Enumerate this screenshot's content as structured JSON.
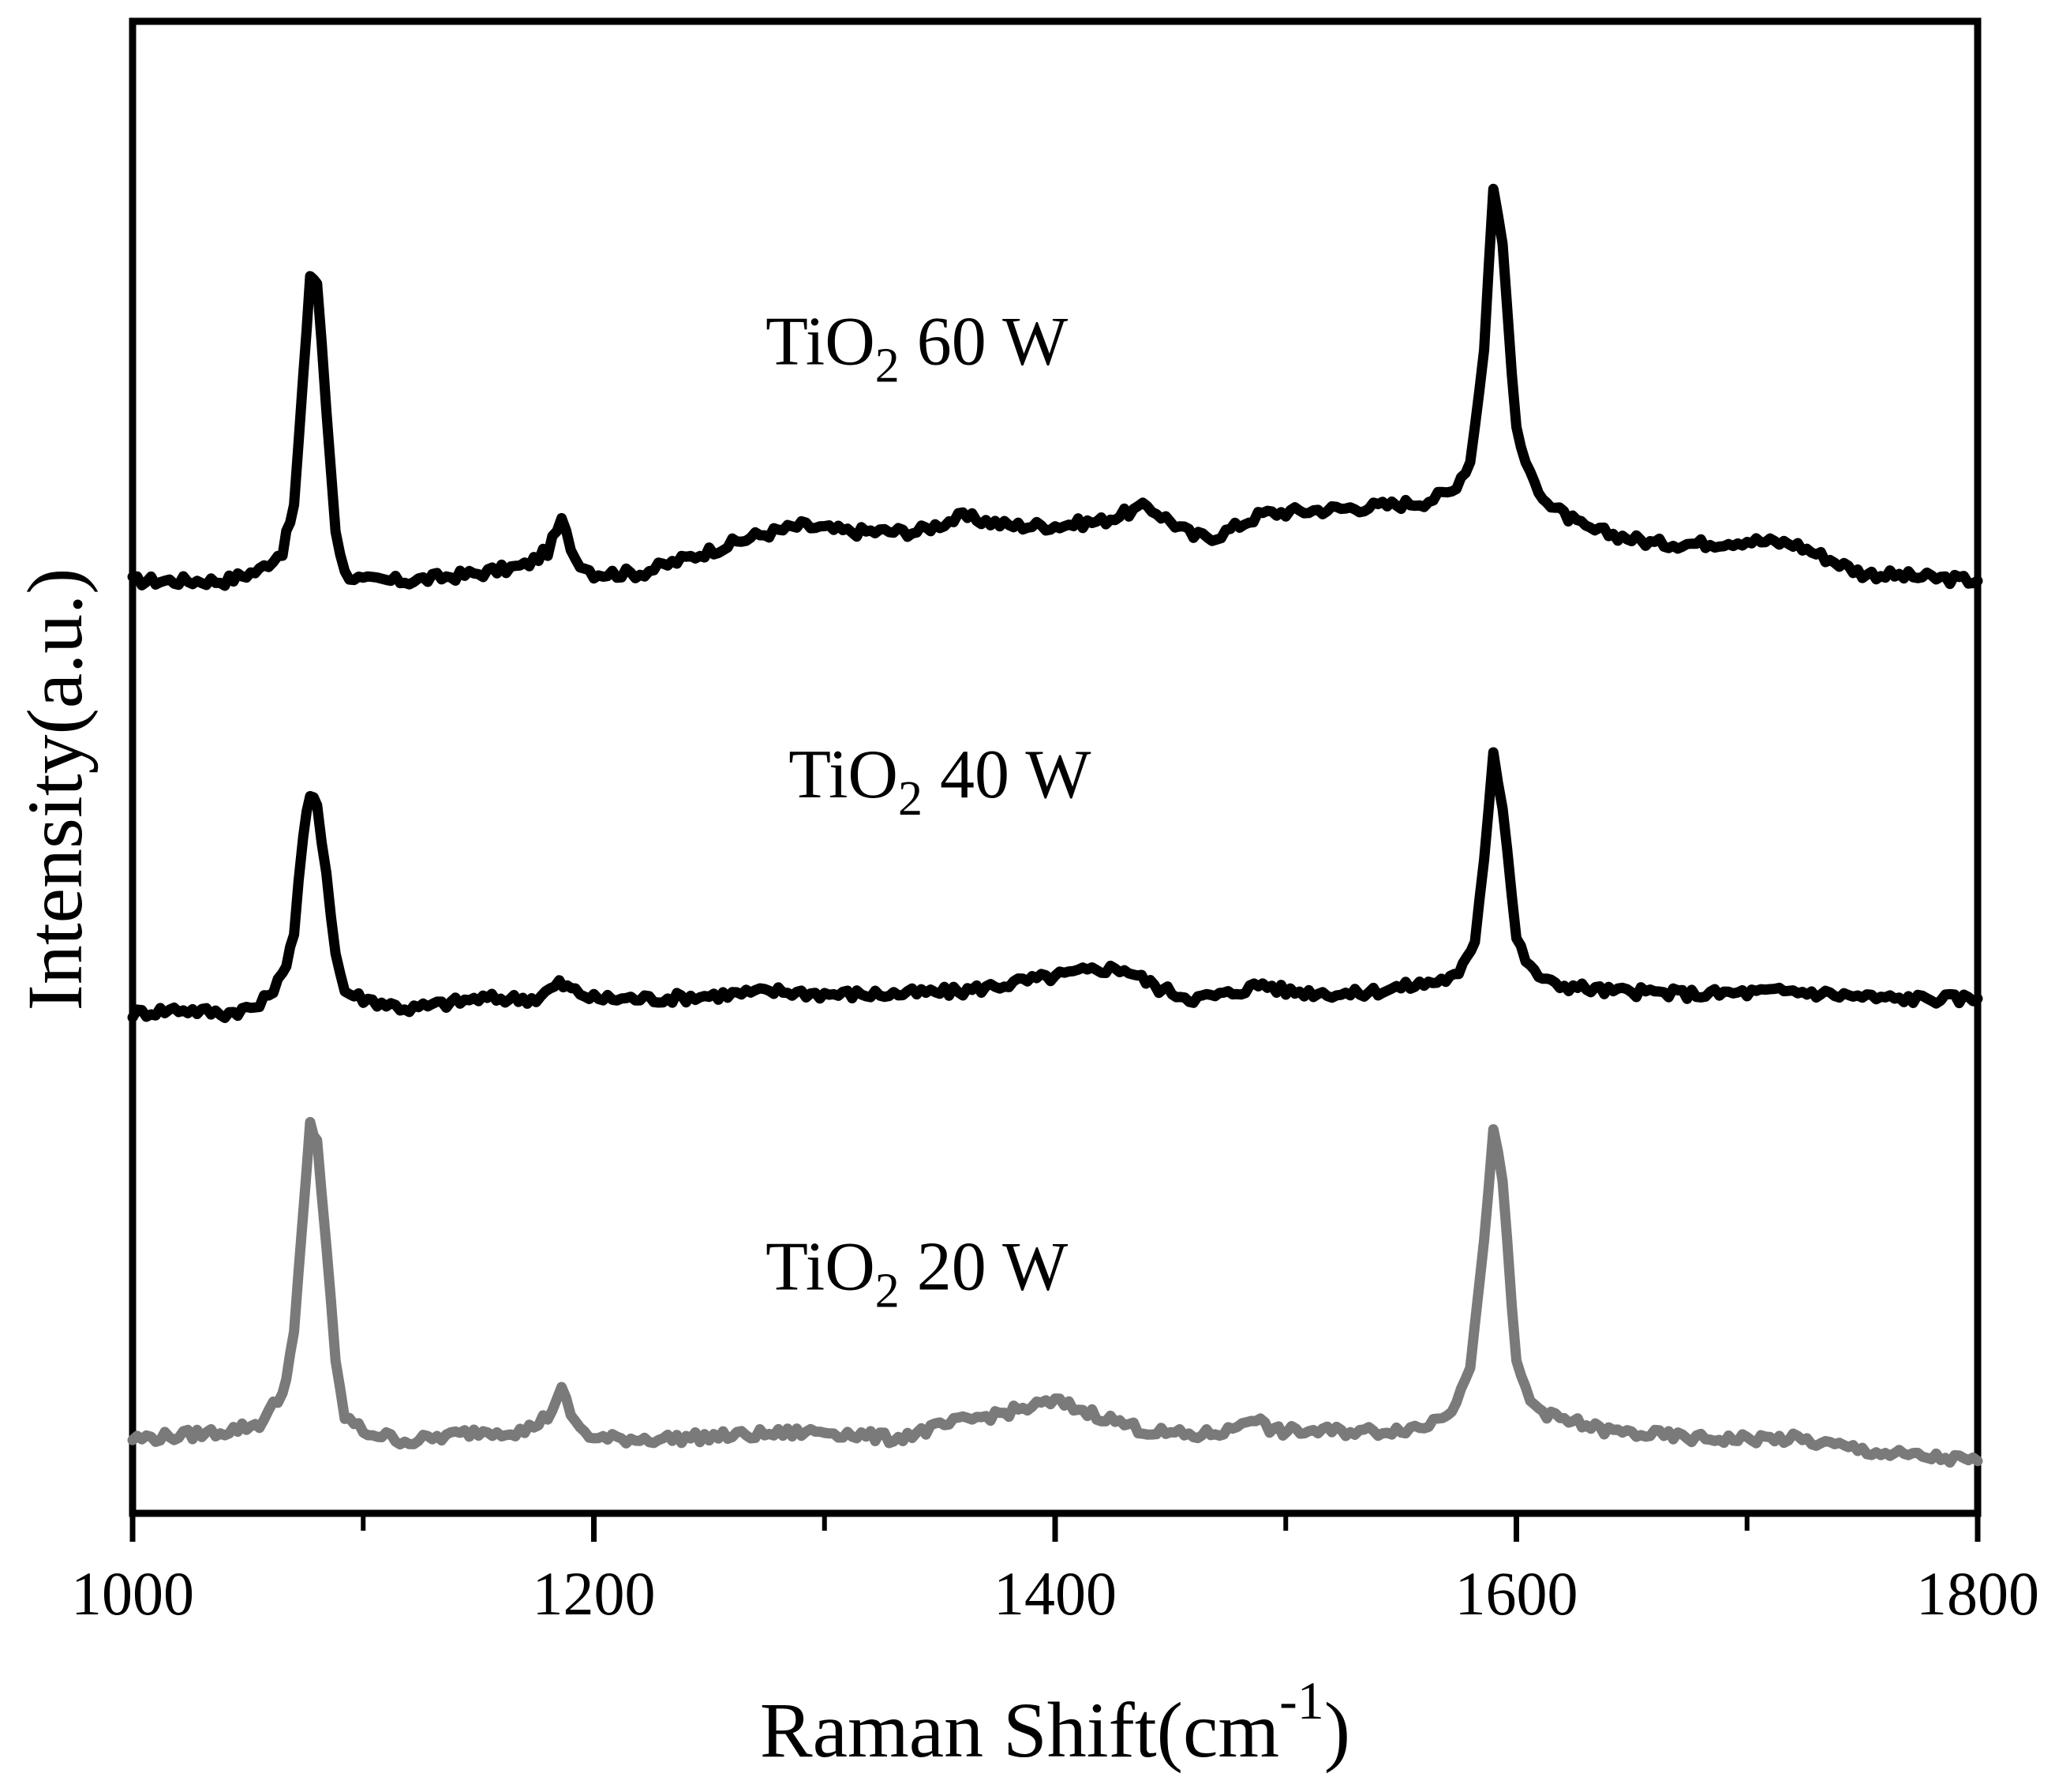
{
  "chart_data": {
    "type": "line",
    "title": "",
    "xlabel": "Raman Shift(cm",
    "xlabel_sup": "-1",
    "xlabel_close": ")",
    "ylabel": "Intensity(a.u.)",
    "xlim": [
      1000,
      1800
    ],
    "xticks": [
      1000,
      1200,
      1400,
      1600,
      1800
    ],
    "xtick_labels": [
      "1000",
      "1200",
      "1400",
      "1600",
      "1800"
    ],
    "minor_xticks": [
      1100,
      1300,
      1500,
      1700
    ],
    "ylim": [
      0,
      100
    ],
    "yticks_shown": false,
    "grid": false,
    "legend": "none",
    "series": [
      {
        "name": "TiO2 60 W",
        "label_main": "TiO",
        "label_sub": "2",
        "label_rest": " 60 W",
        "label_at": [
          1340,
          77
        ],
        "color": "#000000",
        "x": [
          1000,
          1020,
          1040,
          1055,
          1065,
          1070,
          1074,
          1077,
          1080,
          1084,
          1088,
          1092,
          1100,
          1120,
          1150,
          1170,
          1180,
          1186,
          1192,
          1200,
          1220,
          1250,
          1270,
          1290,
          1310,
          1340,
          1360,
          1380,
          1400,
          1420,
          1440,
          1460,
          1470,
          1490,
          1510,
          1540,
          1560,
          1572,
          1580,
          1586,
          1590,
          1594,
          1600,
          1606,
          1615,
          1630,
          1660,
          1680,
          1700,
          1720,
          1750,
          1800
        ],
        "y": [
          62.5,
          62.5,
          62.5,
          63.2,
          64.5,
          67.5,
          76.0,
          83.0,
          82.5,
          74.0,
          66.0,
          63.0,
          62.5,
          62.5,
          63.0,
          63.5,
          64.5,
          66.5,
          64.0,
          63.0,
          63.0,
          64.5,
          65.5,
          66.2,
          65.8,
          65.8,
          66.8,
          66.2,
          66.2,
          66.5,
          67.5,
          65.5,
          65.5,
          67.0,
          67.2,
          67.5,
          67.8,
          68.5,
          70.5,
          78.0,
          89.0,
          85.0,
          72.5,
          69.5,
          67.5,
          66.0,
          65.0,
          65.0,
          65.2,
          65.0,
          63.0,
          62.5
        ]
      },
      {
        "name": "TiO2 40 W",
        "label_main": "TiO",
        "label_sub": "2",
        "label_rest": " 40 W",
        "label_at": [
          1350,
          48
        ],
        "color": "#000000",
        "x": [
          1000,
          1020,
          1040,
          1055,
          1065,
          1070,
          1074,
          1077,
          1080,
          1084,
          1088,
          1092,
          1100,
          1120,
          1150,
          1175,
          1185,
          1192,
          1200,
          1230,
          1260,
          1280,
          1300,
          1330,
          1360,
          1380,
          1400,
          1420,
          1430,
          1445,
          1460,
          1475,
          1490,
          1500,
          1530,
          1560,
          1575,
          1582,
          1586,
          1590,
          1594,
          1600,
          1606,
          1615,
          1640,
          1680,
          1720,
          1760,
          1800
        ],
        "y": [
          33.5,
          33.8,
          33.5,
          34.0,
          36.0,
          39.0,
          45.5,
          48.0,
          47.5,
          43.0,
          37.5,
          35.0,
          34.5,
          33.8,
          34.5,
          34.5,
          35.5,
          35.0,
          34.5,
          34.5,
          34.8,
          35.0,
          34.8,
          34.8,
          35.0,
          35.5,
          36.0,
          36.5,
          36.5,
          35.2,
          34.5,
          34.8,
          35.5,
          35.0,
          34.8,
          35.5,
          36.0,
          38.5,
          44.0,
          51.0,
          47.5,
          38.5,
          36.5,
          35.5,
          35.0,
          34.8,
          35.0,
          34.5,
          34.5
        ]
      },
      {
        "name": "TiO2 20 W",
        "label_main": "TiO",
        "label_sub": "2",
        "label_rest": " 20 W",
        "label_at": [
          1340,
          15
        ],
        "color": "#7a7a7a",
        "x": [
          1000,
          1020,
          1040,
          1055,
          1065,
          1070,
          1074,
          1077,
          1080,
          1084,
          1088,
          1092,
          1100,
          1120,
          1150,
          1170,
          1180,
          1186,
          1192,
          1200,
          1230,
          1260,
          1300,
          1330,
          1360,
          1380,
          1400,
          1420,
          1440,
          1460,
          1475,
          1485,
          1495,
          1510,
          1540,
          1560,
          1572,
          1580,
          1586,
          1590,
          1594,
          1600,
          1606,
          1615,
          1640,
          1680,
          1720,
          1760,
          1800
        ],
        "y": [
          5.0,
          5.2,
          5.5,
          6.0,
          8.0,
          12.0,
          20.0,
          26.0,
          25.0,
          18.0,
          10.0,
          6.5,
          5.5,
          4.8,
          5.5,
          5.5,
          6.5,
          8.2,
          6.0,
          5.0,
          5.0,
          5.2,
          5.5,
          5.0,
          6.2,
          6.8,
          7.5,
          6.5,
          5.5,
          5.2,
          5.5,
          6.5,
          5.5,
          5.5,
          5.5,
          5.8,
          7.0,
          10.0,
          18.0,
          26.0,
          22.0,
          10.0,
          7.5,
          6.5,
          5.5,
          5.0,
          5.0,
          4.0,
          3.5
        ]
      }
    ]
  }
}
